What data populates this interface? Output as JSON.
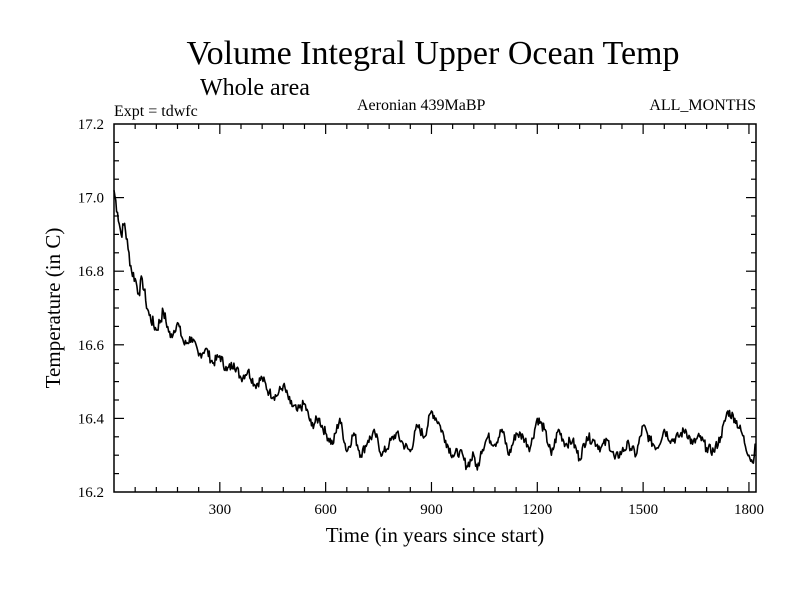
{
  "chart_data": {
    "type": "line",
    "title": "Volume Integral Upper Ocean Temp",
    "subtitle": "Whole area",
    "annotations": {
      "left": "Expt = tdwfc",
      "center": "Aeronian 439MaBP",
      "right": "ALL_MONTHS"
    },
    "xlabel": "Time (in years since start)",
    "ylabel": "Temperature (in C)",
    "xlim": [
      0,
      1820
    ],
    "ylim": [
      16.2,
      17.2
    ],
    "xticks": [
      300,
      600,
      900,
      1200,
      1500,
      1800
    ],
    "xtick_labels": [
      "300",
      "600",
      "900",
      "1200",
      "1500",
      "1800"
    ],
    "yticks": [
      16.2,
      16.4,
      16.6,
      16.8,
      17.0,
      17.2
    ],
    "ytick_labels": [
      "16.2",
      "16.4",
      "16.6",
      "16.8",
      "17.0",
      "17.2"
    ],
    "grid": false,
    "line_color": "#000000",
    "series": [
      {
        "name": "Volume integral upper ocean temperature",
        "x": [
          0,
          10,
          20,
          30,
          40,
          50,
          60,
          70,
          80,
          90,
          100,
          120,
          140,
          160,
          180,
          200,
          220,
          240,
          260,
          280,
          300,
          320,
          340,
          360,
          380,
          400,
          420,
          440,
          460,
          480,
          500,
          520,
          540,
          560,
          580,
          600,
          620,
          640,
          660,
          680,
          700,
          720,
          740,
          760,
          780,
          800,
          820,
          840,
          860,
          880,
          900,
          920,
          940,
          960,
          980,
          1000,
          1020,
          1030,
          1040,
          1060,
          1080,
          1100,
          1120,
          1140,
          1160,
          1180,
          1200,
          1220,
          1240,
          1260,
          1280,
          1300,
          1320,
          1340,
          1360,
          1380,
          1400,
          1420,
          1440,
          1460,
          1480,
          1500,
          1520,
          1540,
          1560,
          1580,
          1600,
          1620,
          1640,
          1660,
          1680,
          1700,
          1720,
          1740,
          1760,
          1780,
          1800,
          1810,
          1820
        ],
        "values": [
          17.02,
          16.96,
          16.9,
          16.93,
          16.86,
          16.8,
          16.78,
          16.74,
          16.78,
          16.72,
          16.68,
          16.64,
          16.69,
          16.62,
          16.66,
          16.6,
          16.62,
          16.57,
          16.59,
          16.55,
          16.57,
          16.53,
          16.55,
          16.51,
          16.53,
          16.49,
          16.51,
          16.47,
          16.46,
          16.49,
          16.44,
          16.42,
          16.44,
          16.38,
          16.4,
          16.36,
          16.33,
          16.4,
          16.31,
          16.36,
          16.3,
          16.34,
          16.36,
          16.3,
          16.33,
          16.36,
          16.33,
          16.31,
          16.38,
          16.35,
          16.42,
          16.39,
          16.34,
          16.3,
          16.31,
          16.27,
          16.3,
          16.26,
          16.31,
          16.35,
          16.33,
          16.37,
          16.3,
          16.36,
          16.35,
          16.32,
          16.4,
          16.37,
          16.3,
          16.37,
          16.33,
          16.34,
          16.29,
          16.35,
          16.34,
          16.32,
          16.34,
          16.29,
          16.31,
          16.33,
          16.3,
          16.38,
          16.34,
          16.32,
          16.37,
          16.34,
          16.35,
          16.37,
          16.33,
          16.35,
          16.32,
          16.31,
          16.35,
          16.42,
          16.4,
          16.36,
          16.3,
          16.28,
          16.33
        ]
      }
    ]
  }
}
